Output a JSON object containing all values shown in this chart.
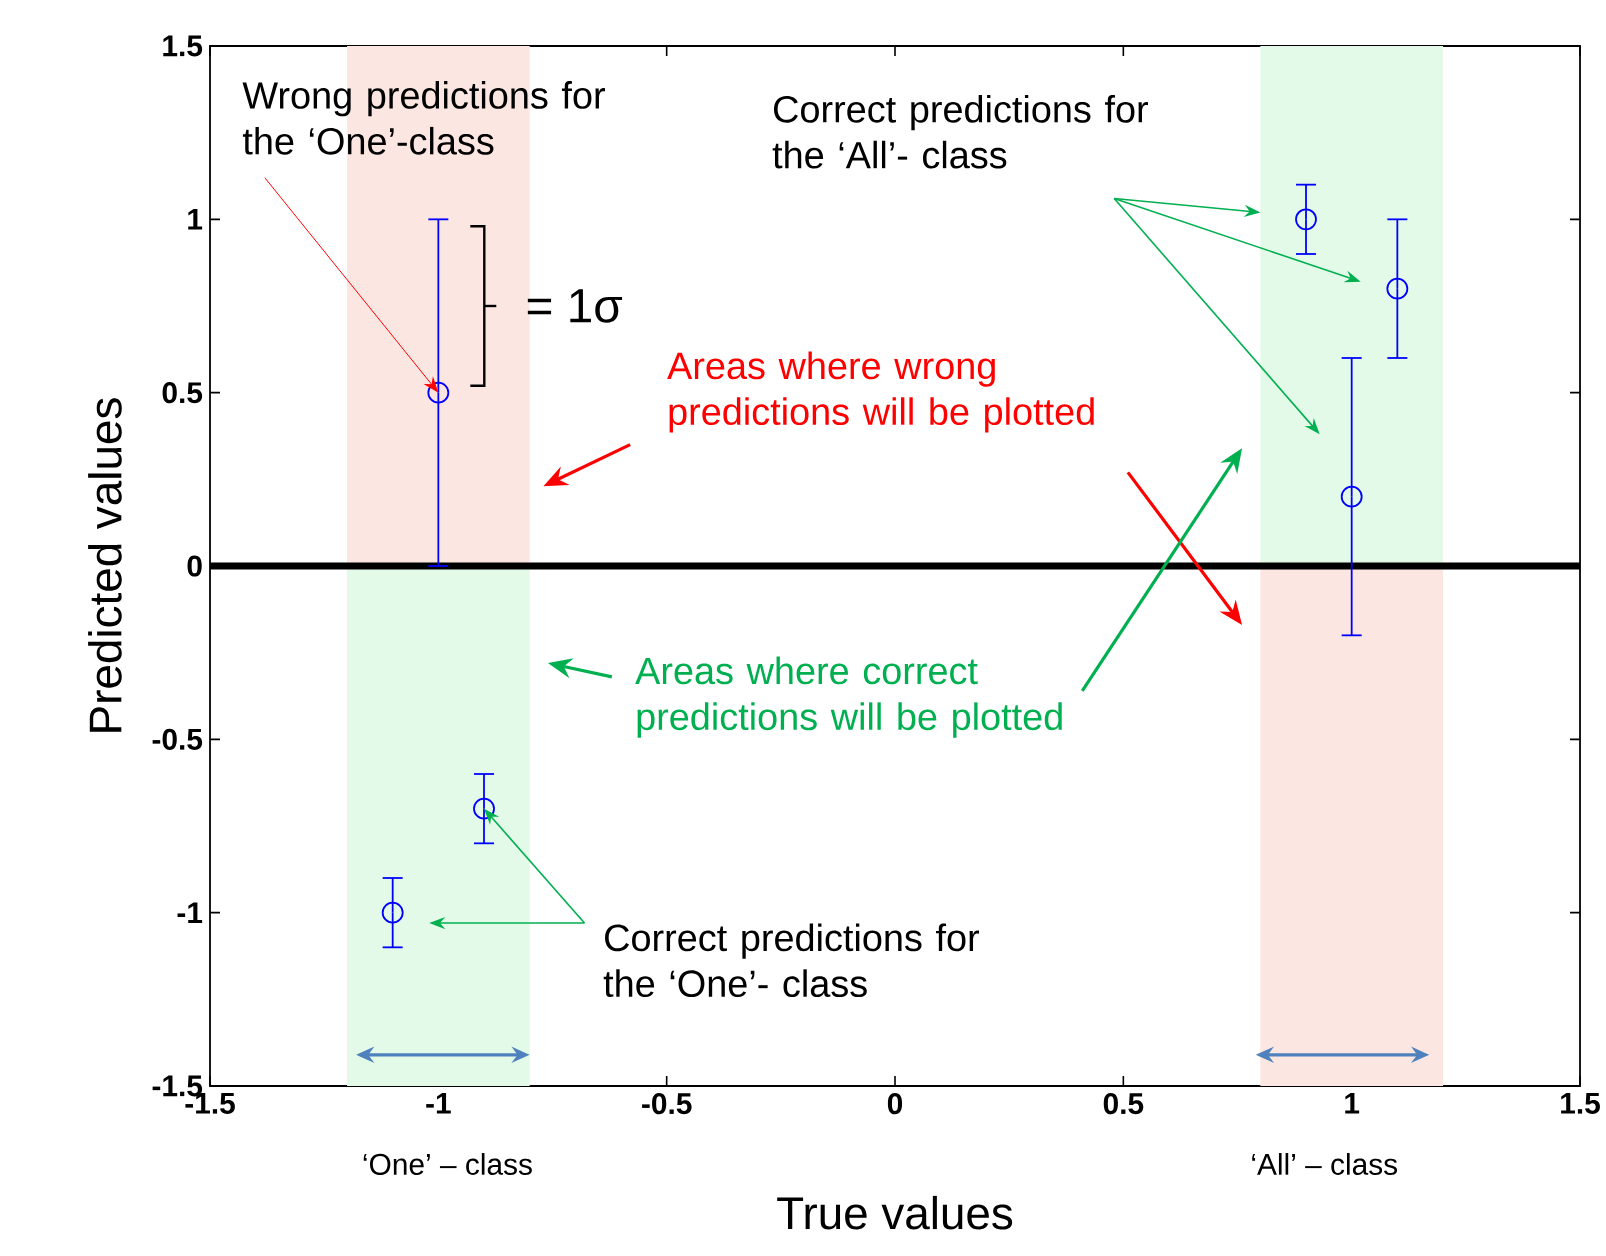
{
  "chart_data": {
    "type": "scatter",
    "xlabel": "True values",
    "ylabel": "Predicted values",
    "xlim": [
      -1.5,
      1.5
    ],
    "ylim": [
      -1.5,
      1.5
    ],
    "xticks": [
      -1.5,
      -1,
      -0.5,
      0,
      0.5,
      1,
      1.5
    ],
    "yticks": [
      -1.5,
      -1,
      -0.5,
      0,
      0.5,
      1,
      1.5
    ],
    "series": [
      {
        "color": "#0000ff",
        "x": [
          -1.1,
          -1,
          -0.9,
          0.9,
          1,
          1.1
        ],
        "values": [
          -1,
          0.5,
          -0.7,
          1,
          0.2,
          0.8
        ],
        "errors": [
          0.1,
          [
            0,
            1
          ],
          0.1,
          0.1,
          [
            -0.2,
            0.6
          ],
          0.2
        ]
      }
    ],
    "marker": "circle",
    "ref_lines": [
      {
        "axis": "y",
        "value": 0,
        "color": "#000000"
      }
    ],
    "bands": [
      {
        "axis": "x",
        "from": -1.2,
        "to": -0.8,
        "color": "#fce6e2"
      },
      {
        "axis": "x",
        "from": -1.2,
        "to": -0.8,
        "color": "#e4fae8"
      },
      {
        "axis": "x",
        "from": 0.8,
        "to": 1.2,
        "color": "#e4fae8"
      },
      {
        "axis": "x",
        "from": 0.8,
        "to": 1.2,
        "color": "#fce6e2"
      }
    ],
    "annotations": [
      {
        "text": "Wrong predictions for the ‘One’-class",
        "x": -1,
        "y": 0.5
      },
      "= 1σ",
      "Areas where wrong predictions will be plotted",
      "Areas where correct predictions will be plotted",
      "Correct predictions for the ‘All’- class",
      {
        "text": "Correct predictions for the ‘One’- class",
        "x": -0.9,
        "y": -0.7
      },
      "‘One’ – class",
      "‘All’ – class"
    ]
  }
}
